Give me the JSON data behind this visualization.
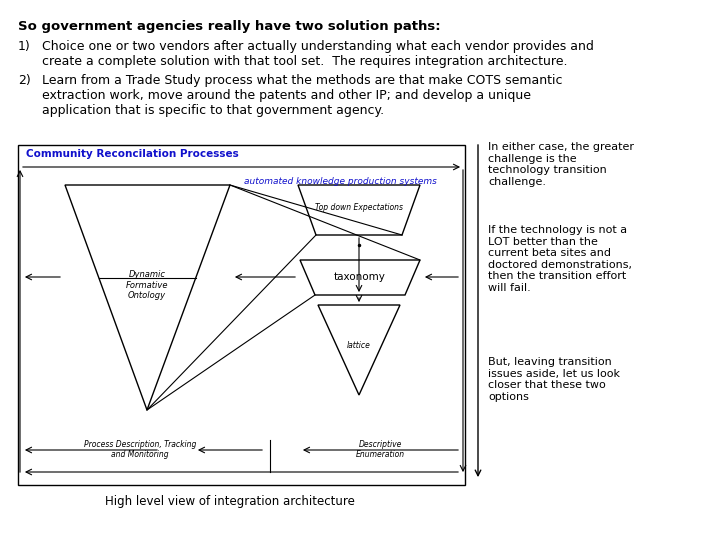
{
  "title": "So government agencies really have two solution paths:",
  "item1_num": "1)",
  "item1_text": "Choice one or two vendors after actually understanding what each vendor provides and\ncreate a complete solution with that tool set.  The requires integration architecture.",
  "item2_num": "2)",
  "item2_text": "Learn from a Trade Study process what the methods are that make COTS semantic\nextraction work, move around the patents and other IP; and develop a unique\napplication that is specific to that government agency.",
  "diagram_title": "Community Reconcilation Processes",
  "diagram_subtitle": "automated knowledge production systems",
  "label_dfo": "Dynamic\nFormative\nOntology",
  "label_top_down": "Top down Expectations",
  "label_taxonomy": "taxonomy",
  "label_lattice": "lattice",
  "label_proc": "Process Description, Tracking\nand Monitoring",
  "label_desc": "Descriptive\nEnumeration",
  "caption": "High level view of integration architecture",
  "side_text1": "In either case, the greater\nchallenge is the\ntechnology transition\nchallenge.",
  "side_text2": "If the technology is not a\nLOT better than the\ncurrent beta sites and\ndoctored demonstrations,\nthen the transition effort\nwill fail.",
  "side_text3": "But, leaving transition\nissues aside, let us look\ncloser that these two\noptions",
  "bg_color": "#ffffff",
  "diagram_title_color": "#1111cc",
  "diagram_subtitle_color": "#1111cc",
  "text_color": "#000000"
}
